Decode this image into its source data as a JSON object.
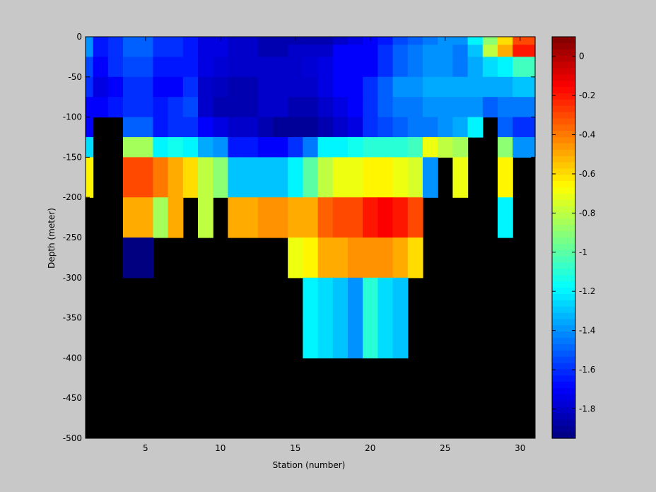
{
  "chart_data": {
    "type": "heatmap",
    "title": "",
    "xlabel": "Station (number)",
    "ylabel": "Depth (meter)",
    "xlim": [
      1,
      31
    ],
    "ylim": [
      -500,
      0
    ],
    "x_ticks": [
      5,
      10,
      15,
      20,
      25,
      30
    ],
    "y_ticks": [
      0,
      -50,
      -100,
      -150,
      -200,
      -250,
      -300,
      -350,
      -400,
      -450,
      -500
    ],
    "grid": false,
    "background_color": "#000000",
    "colorbar": {
      "colormap": "jet",
      "clim": [
        -1.95,
        0.1
      ],
      "ticks": [
        0,
        -0.2,
        -0.4,
        -0.6,
        -0.8,
        -1,
        -1.2,
        -1.4,
        -1.6,
        -1.8
      ],
      "tick_labels": [
        "0",
        "-0.2",
        "-0.4",
        "-0.6",
        "-0.8",
        "-1",
        "-1.2",
        "-1.4",
        "-1.6",
        "-1.8"
      ],
      "position": "right"
    },
    "stations": [
      1,
      2,
      3,
      4,
      5,
      6,
      7,
      8,
      9,
      10,
      11,
      12,
      13,
      14,
      15,
      16,
      17,
      18,
      19,
      20,
      21,
      22,
      23,
      24,
      25,
      26,
      27,
      28,
      29,
      30
    ],
    "depths": [
      -5,
      -15,
      -37.5,
      -62.5,
      -87.5,
      -112.5,
      -137.5,
      -175,
      -225,
      -275,
      -325,
      -375
    ],
    "values": [
      [
        -1.4,
        -1.65,
        -1.6,
        -1.5,
        -1.5,
        -1.6,
        -1.6,
        -1.65,
        -1.75,
        -1.75,
        -1.8,
        -1.8,
        -1.85,
        -1.85,
        -1.85,
        -1.85,
        -1.85,
        -1.8,
        -1.75,
        -1.7,
        -1.65,
        -1.55,
        -1.5,
        -1.45,
        -1.4,
        -1.4,
        -1.2,
        -0.9,
        -0.6,
        -0.3
      ],
      [
        -1.4,
        -1.65,
        -1.6,
        -1.5,
        -1.5,
        -1.6,
        -1.6,
        -1.65,
        -1.75,
        -1.75,
        -1.8,
        -1.8,
        -1.85,
        -1.85,
        -1.8,
        -1.8,
        -1.8,
        -1.7,
        -1.7,
        -1.7,
        -1.6,
        -1.5,
        -1.45,
        -1.4,
        -1.4,
        -1.45,
        -1.3,
        -0.8,
        -0.5,
        -0.2
      ],
      [
        -1.55,
        -1.7,
        -1.6,
        -1.55,
        -1.55,
        -1.65,
        -1.65,
        -1.65,
        -1.75,
        -1.78,
        -1.8,
        -1.8,
        -1.8,
        -1.8,
        -1.8,
        -1.78,
        -1.75,
        -1.7,
        -1.7,
        -1.7,
        -1.6,
        -1.5,
        -1.45,
        -1.4,
        -1.4,
        -1.45,
        -1.35,
        -1.25,
        -1.2,
        -1.05
      ],
      [
        -1.6,
        -1.75,
        -1.7,
        -1.6,
        -1.6,
        -1.7,
        -1.7,
        -1.6,
        -1.8,
        -1.82,
        -1.85,
        -1.85,
        -1.8,
        -1.8,
        -1.8,
        -1.8,
        -1.75,
        -1.7,
        -1.7,
        -1.6,
        -1.5,
        -1.4,
        -1.4,
        -1.35,
        -1.35,
        -1.35,
        -1.35,
        -1.35,
        -1.35,
        -1.3
      ],
      [
        -1.7,
        -1.7,
        -1.65,
        -1.6,
        -1.6,
        -1.65,
        -1.6,
        -1.55,
        -1.8,
        -1.85,
        -1.85,
        -1.85,
        -1.8,
        -1.8,
        -1.85,
        -1.85,
        -1.8,
        -1.75,
        -1.7,
        -1.6,
        -1.5,
        -1.45,
        -1.45,
        -1.4,
        -1.4,
        -1.4,
        -1.4,
        -1.5,
        -1.45,
        -1.45
      ],
      [
        -1.7,
        null,
        null,
        -1.5,
        -1.5,
        -1.65,
        -1.6,
        -1.6,
        -1.7,
        -1.75,
        -1.8,
        -1.8,
        -1.85,
        -1.9,
        -1.9,
        -1.9,
        -1.85,
        -1.8,
        -1.75,
        -1.6,
        -1.55,
        -1.5,
        -1.45,
        -1.45,
        -1.4,
        -1.35,
        -1.2,
        null,
        -1.5,
        -1.6
      ],
      [
        -1.25,
        null,
        null,
        -0.85,
        -0.85,
        -1.2,
        -1.15,
        -1.2,
        -1.35,
        -1.4,
        -1.65,
        -1.65,
        -1.7,
        -1.7,
        -1.6,
        -1.45,
        -1.2,
        -1.2,
        -1.15,
        -1.1,
        -1.1,
        -1.1,
        -1.05,
        -0.7,
        -0.8,
        -0.85,
        null,
        null,
        -0.9,
        -1.4
      ],
      [
        -0.65,
        null,
        null,
        -0.3,
        -0.3,
        -0.4,
        -0.5,
        -0.6,
        -0.8,
        -0.9,
        -1.3,
        -1.3,
        -1.3,
        -1.3,
        -1.2,
        -1.0,
        -0.8,
        -0.7,
        -0.7,
        -0.65,
        -0.65,
        -0.7,
        -0.75,
        -1.4,
        null,
        -0.7,
        null,
        null,
        -0.65,
        null
      ],
      [
        null,
        null,
        null,
        -0.5,
        -0.5,
        -0.85,
        -0.5,
        null,
        -0.8,
        null,
        -0.5,
        -0.5,
        -0.45,
        -0.45,
        -0.5,
        -0.5,
        -0.35,
        -0.3,
        -0.3,
        -0.2,
        -0.15,
        -0.2,
        -0.3,
        null,
        null,
        null,
        null,
        null,
        -1.2,
        null
      ],
      [
        null,
        null,
        null,
        -1.95,
        -1.95,
        null,
        null,
        null,
        null,
        null,
        null,
        null,
        null,
        null,
        -0.7,
        -0.65,
        -0.5,
        -0.5,
        -0.45,
        -0.45,
        -0.45,
        -0.5,
        -0.6,
        null,
        null,
        null,
        null,
        null,
        null,
        null
      ],
      [
        null,
        null,
        null,
        null,
        null,
        null,
        null,
        null,
        null,
        null,
        null,
        null,
        null,
        null,
        null,
        -1.2,
        -1.25,
        -1.3,
        -1.4,
        -1.1,
        -1.25,
        -1.3,
        null,
        null,
        null,
        null,
        null,
        null,
        null,
        null
      ],
      [
        null,
        null,
        null,
        null,
        null,
        null,
        null,
        null,
        null,
        null,
        null,
        null,
        null,
        null,
        null,
        -1.2,
        -1.25,
        -1.3,
        -1.4,
        -1.1,
        -1.25,
        -1.3,
        null,
        null,
        null,
        null,
        null,
        null,
        null,
        null
      ]
    ]
  }
}
